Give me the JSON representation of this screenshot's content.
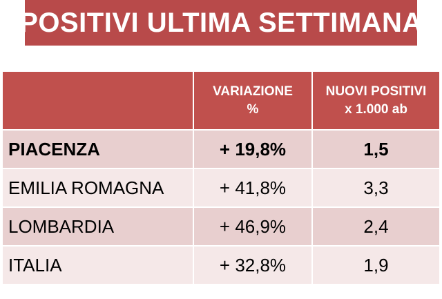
{
  "title": "POSITIVI ULTIMA SETTIMANA",
  "columns": {
    "region": "",
    "variation": [
      "VARIAZIONE",
      "%"
    ],
    "new_positives": [
      "NUOVI POSITIVI",
      "x 1.000 ab"
    ]
  },
  "rows": [
    {
      "region": "PIACENZA",
      "variation": "+ 19,8%",
      "new_positives": "1,5"
    },
    {
      "region": "EMILIA ROMAGNA",
      "variation": "+ 41,8%",
      "new_positives": "3,3"
    },
    {
      "region": "LOMBARDIA",
      "variation": "+ 46,9%",
      "new_positives": "2,4"
    },
    {
      "region": "ITALIA",
      "variation": "+ 32,8%",
      "new_positives": "1,9"
    }
  ],
  "colors": {
    "banner": "#b84a4a",
    "header": "#c0504d",
    "row_dark": "#e8cfcf",
    "row_light": "#f5e8e8"
  }
}
